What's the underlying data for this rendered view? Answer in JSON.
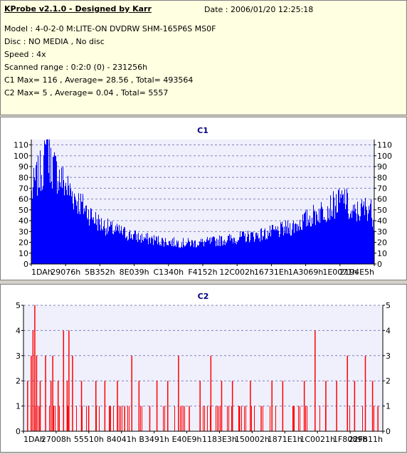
{
  "header": {
    "title": "KProbe v2.1.0 - Designed by Karr",
    "date": "Date : 2006/01/20 12:25:18",
    "model": "Model : 4-0-2-0 M:LITE-ON DVDRW SHM-165P6S MS0F",
    "disc": "Disc : NO MEDIA , No disc",
    "speed": "Speed : 4x",
    "scanned_range": "Scanned range : 0:2:0 (0) - 231256h",
    "c1_summary": "C1 Max= 116 , Average= 28.56 , Total= 493564",
    "c2_summary": "C2 Max= 5 , Average= 0.04 , Total= 5557"
  },
  "colors": {
    "c1_fill": "#0000ff",
    "c2_fill": "#ff0000",
    "plot_bg": "#f0f0fc",
    "grid": "#8080c0"
  },
  "chart_data": [
    {
      "type": "bar",
      "title": "C1",
      "ylim": [
        0,
        115
      ],
      "yticks": [
        0,
        10,
        20,
        30,
        40,
        50,
        60,
        70,
        80,
        90,
        100,
        110
      ],
      "x_tick_labels": [
        "1DAh",
        "29076h",
        "5B352h",
        "8E039h",
        "C1340h",
        "F4152h",
        "12C002h",
        "16731Eh",
        "1A3069h",
        "1E0071h",
        "2194E5h"
      ],
      "grid": true,
      "envelope": [
        [
          0,
          70
        ],
        [
          0.01,
          82
        ],
        [
          0.02,
          88
        ],
        [
          0.03,
          95
        ],
        [
          0.045,
          110
        ],
        [
          0.06,
          98
        ],
        [
          0.08,
          88
        ],
        [
          0.1,
          78
        ],
        [
          0.13,
          65
        ],
        [
          0.17,
          50
        ],
        [
          0.2,
          40
        ],
        [
          0.24,
          34
        ],
        [
          0.28,
          30
        ],
        [
          0.32,
          26
        ],
        [
          0.36,
          24
        ],
        [
          0.4,
          22
        ],
        [
          0.44,
          21
        ],
        [
          0.48,
          21
        ],
        [
          0.52,
          22
        ],
        [
          0.56,
          24
        ],
        [
          0.6,
          26
        ],
        [
          0.64,
          28
        ],
        [
          0.68,
          30
        ],
        [
          0.72,
          33
        ],
        [
          0.76,
          37
        ],
        [
          0.8,
          44
        ],
        [
          0.84,
          52
        ],
        [
          0.87,
          57
        ],
        [
          0.9,
          62
        ],
        [
          0.915,
          66
        ],
        [
          0.93,
          48
        ],
        [
          0.95,
          52
        ],
        [
          0.97,
          55
        ],
        [
          0.985,
          58
        ],
        [
          1.0,
          42
        ]
      ],
      "peak": {
        "position": 0.045,
        "value": 116
      }
    },
    {
      "type": "bar",
      "title": "C2",
      "ylim": [
        0,
        5
      ],
      "yticks": [
        0,
        1,
        2,
        3,
        4,
        5
      ],
      "x_tick_labels": [
        "1DAh",
        "27008h",
        "55510h",
        "84041h",
        "B3491h",
        "E40E9h",
        "1183E3h",
        "150002h",
        "1871E1h",
        "1C0021h",
        "1F8089h",
        "22F811h"
      ],
      "grid": true,
      "spikes": [
        [
          0.01,
          2
        ],
        [
          0.02,
          3
        ],
        [
          0.025,
          4
        ],
        [
          0.03,
          5
        ],
        [
          0.035,
          3
        ],
        [
          0.045,
          2
        ],
        [
          0.06,
          3
        ],
        [
          0.075,
          2
        ],
        [
          0.08,
          3
        ],
        [
          0.095,
          2
        ],
        [
          0.11,
          4
        ],
        [
          0.12,
          2
        ],
        [
          0.125,
          4
        ],
        [
          0.135,
          3
        ],
        [
          0.16,
          2
        ],
        [
          0.18,
          1
        ],
        [
          0.2,
          2
        ],
        [
          0.225,
          2
        ],
        [
          0.24,
          1
        ],
        [
          0.26,
          2
        ],
        [
          0.28,
          1
        ],
        [
          0.3,
          3
        ],
        [
          0.32,
          2
        ],
        [
          0.35,
          1
        ],
        [
          0.37,
          2
        ],
        [
          0.4,
          2
        ],
        [
          0.43,
          3
        ],
        [
          0.46,
          1
        ],
        [
          0.49,
          2
        ],
        [
          0.52,
          3
        ],
        [
          0.55,
          2
        ],
        [
          0.58,
          2
        ],
        [
          0.6,
          1
        ],
        [
          0.63,
          2
        ],
        [
          0.66,
          1
        ],
        [
          0.69,
          2
        ],
        [
          0.72,
          2
        ],
        [
          0.75,
          1
        ],
        [
          0.78,
          2
        ],
        [
          0.81,
          4
        ],
        [
          0.84,
          2
        ],
        [
          0.87,
          2
        ],
        [
          0.9,
          3
        ],
        [
          0.92,
          2
        ],
        [
          0.95,
          3
        ],
        [
          0.97,
          2
        ],
        [
          0.985,
          1
        ]
      ]
    }
  ]
}
